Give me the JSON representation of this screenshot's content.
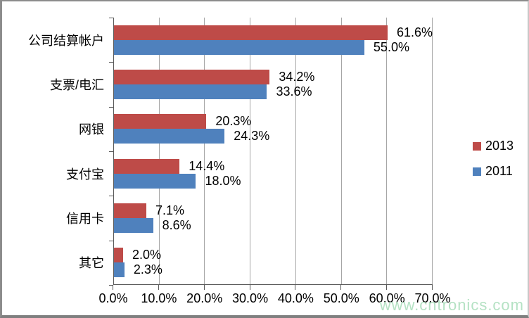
{
  "watermark": "www.cntronics.com",
  "colors": {
    "series_2013": "#BE4B48",
    "series_2011": "#4F81BD",
    "gridline": "#a6a6a6",
    "axis": "#595959",
    "watermark": "#b5e2c4"
  },
  "chart_data": {
    "type": "bar",
    "orientation": "horizontal",
    "title": "",
    "xlabel": "",
    "ylabel": "",
    "grid": true,
    "legend_position": "right",
    "categories": [
      "公司结算帐户",
      "支票/电汇",
      "网银",
      "支付宝",
      "信用卡",
      "其它"
    ],
    "series": [
      {
        "name": "2013",
        "color": "#BE4B48",
        "values": [
          61.6,
          34.2,
          20.3,
          14.4,
          7.1,
          2.0
        ],
        "labels": [
          "61.6%",
          "34.2%",
          "20.3%",
          "14.4%",
          "7.1%",
          "2.0%"
        ]
      },
      {
        "name": "2011",
        "color": "#4F81BD",
        "values": [
          55.0,
          33.6,
          24.3,
          18.0,
          8.6,
          2.3
        ],
        "labels": [
          "55.0%",
          "33.6%",
          "24.3%",
          "18.0%",
          "8.6%",
          "2.3%"
        ]
      }
    ],
    "xlim": [
      0,
      70
    ],
    "x_tick_step": 10,
    "x_tick_labels": [
      "0.0%",
      "10.0%",
      "20.0%",
      "30.0%",
      "40.0%",
      "50.0%",
      "60.0%",
      "70.0%"
    ]
  }
}
